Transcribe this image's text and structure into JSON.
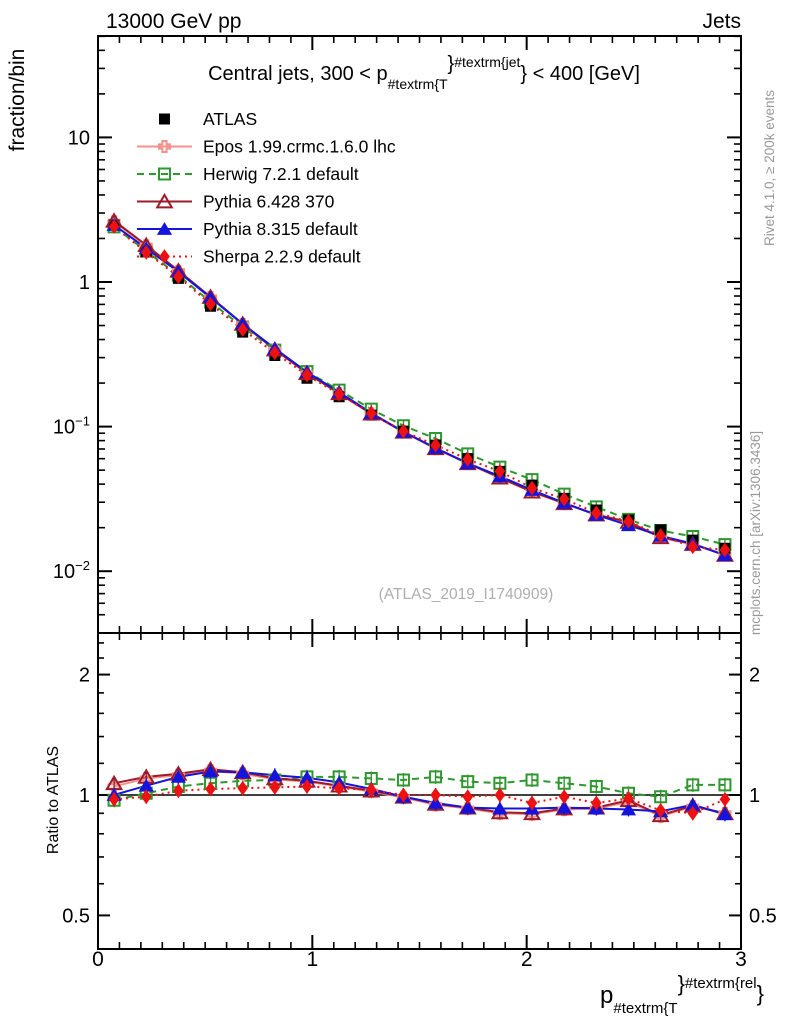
{
  "header": {
    "left": "13000 GeV pp",
    "right": "Jets"
  },
  "side_notes": {
    "rivet": "Rivet 4.1.0, ≥ 200k events",
    "mcplots": "mcplots.cern.ch [arXiv:1306.3436]"
  },
  "watermark": "(ATLAS_2019_I1740909)",
  "chart_data": {
    "type": "line",
    "title": {
      "plain": "Central jets, 300 < p_{#textrm{T}}^{#textrm{jet}} < 400 [GeV]",
      "parts": [
        {
          "t": "Central jets, 300 < p",
          "off": 0,
          "size": 20
        },
        {
          "t": "#textrm{T",
          "off": 9,
          "size": 14
        },
        {
          "t": "}",
          "off": -10,
          "size": 20
        },
        {
          "t": "#textrm{jet",
          "off": -13,
          "size": 14
        },
        {
          "t": "} < 400 [GeV]",
          "off": 0,
          "size": 20
        }
      ]
    },
    "ylabel": "fraction/bin",
    "ratio_ylabel": "Ratio to ATLAS",
    "xlabel": {
      "plain": "p_{#textrm{T}}^{#textrm{rel}}",
      "parts": [
        {
          "t": "p",
          "off": 0,
          "size": 24
        },
        {
          "t": "#textrm{T",
          "off": 10,
          "size": 15
        },
        {
          "t": "}",
          "off": -12,
          "size": 22
        },
        {
          "t": "#textrm{rel",
          "off": -15,
          "size": 15
        },
        {
          "t": "}",
          "off": -2,
          "size": 22
        }
      ]
    },
    "x_range": [
      0,
      3
    ],
    "x_major_ticks": [
      0,
      1,
      2,
      3
    ],
    "x_tick_labels": [
      "0",
      "1",
      "2",
      "3"
    ],
    "x_minor_step": 0.1,
    "main_axis": {
      "scale": "log",
      "range": [
        0.00374,
        50.2
      ],
      "major_ticks": [
        {
          "v": 10,
          "t": "10"
        },
        {
          "v": 1,
          "t": "1"
        },
        {
          "v": 0.1,
          "t": "10",
          "e": "−1"
        },
        {
          "v": 0.01,
          "t": "10",
          "e": "−2"
        }
      ],
      "minor_ticks": [
        0.005,
        0.006,
        0.007,
        0.008,
        0.009,
        0.02,
        0.03,
        0.04,
        0.05,
        0.06,
        0.07,
        0.08,
        0.09,
        0.2,
        0.3,
        0.4,
        0.5,
        0.6,
        0.7,
        0.8,
        0.9,
        2,
        3,
        4,
        5,
        6,
        7,
        8,
        9,
        20,
        30,
        40,
        50
      ]
    },
    "ratio_axis": {
      "scale": "log",
      "range": [
        0.412,
        2.54
      ],
      "baseline": 1,
      "major_ticks": [
        {
          "v": 2,
          "t": "2"
        },
        {
          "v": 1,
          "t": "1"
        },
        {
          "v": 0.5,
          "t": "0.5"
        }
      ],
      "minor_ticks": [
        0.6,
        0.7,
        0.8,
        0.9,
        1.2,
        1.4,
        1.6,
        1.8,
        2.2,
        2.4
      ]
    },
    "bin_centers": [
      0.075,
      0.225,
      0.375,
      0.525,
      0.675,
      0.825,
      0.975,
      1.125,
      1.275,
      1.425,
      1.575,
      1.725,
      1.875,
      2.025,
      2.175,
      2.325,
      2.475,
      2.625,
      2.775,
      2.925
    ],
    "series": [
      {
        "key": "atlas",
        "name": "ATLAS",
        "color": "#000000",
        "marker": "filled-square",
        "line": "none",
        "role": "data",
        "values": [
          2.48,
          1.62,
          1.06,
          0.68,
          0.45,
          0.31,
          0.216,
          0.161,
          0.12,
          0.093,
          0.0745,
          0.06,
          0.049,
          0.0394,
          0.0319,
          0.0265,
          0.0226,
          0.0193,
          0.0164,
          0.0144
        ]
      },
      {
        "key": "epos",
        "name": "Epos 1.99.crmc.1.6.0 lhc",
        "color": "#f4918b",
        "marker": "open-cross",
        "line": "solid",
        "ratio_to_data": [
          1.05,
          1.1,
          1.12,
          1.15,
          1.13,
          1.095,
          1.08,
          1.05,
          1.02,
          0.985,
          0.945,
          0.925,
          0.9,
          0.895,
          0.92,
          0.925,
          0.96,
          0.885,
          0.935,
          0.9
        ]
      },
      {
        "key": "herwig",
        "name": "Herwig 7.2.1 default",
        "color": "#2f972f",
        "marker": "open-square",
        "line": "dashed",
        "ratio_to_data": [
          0.97,
          1.01,
          1.05,
          1.07,
          1.085,
          1.09,
          1.11,
          1.11,
          1.1,
          1.09,
          1.11,
          1.08,
          1.07,
          1.09,
          1.07,
          1.05,
          1.01,
          0.99,
          1.06,
          1.06
        ]
      },
      {
        "key": "pythia6",
        "name": "Pythia 6.428 370",
        "color": "#9c1b2a",
        "marker": "open-triangle",
        "line": "solid",
        "ratio_to_data": [
          1.07,
          1.11,
          1.13,
          1.16,
          1.14,
          1.1,
          1.085,
          1.055,
          1.025,
          0.99,
          0.95,
          0.93,
          0.905,
          0.9,
          0.925,
          0.93,
          0.97,
          0.89,
          0.94,
          0.9
        ]
      },
      {
        "key": "pythia8",
        "name": "Pythia 8.315 default",
        "color": "#1414dc",
        "marker": "filled-triangle",
        "line": "solid",
        "ratio_to_data": [
          1.0,
          1.055,
          1.11,
          1.145,
          1.14,
          1.12,
          1.105,
          1.075,
          1.035,
          0.99,
          0.955,
          0.93,
          0.925,
          0.925,
          0.93,
          0.925,
          0.92,
          0.91,
          0.945,
          0.895
        ]
      },
      {
        "key": "sherpa",
        "name": "Sherpa 2.2.9 default",
        "color": "#ee1111",
        "marker": "filled-diamond",
        "line": "dotted",
        "ratio_to_data": [
          0.975,
          0.99,
          1.025,
          1.035,
          1.04,
          1.045,
          1.05,
          1.04,
          1.03,
          1.0,
          1.0,
          0.99,
          1.0,
          0.955,
          0.99,
          0.955,
          0.98,
          0.915,
          0.9,
          0.975
        ]
      }
    ],
    "legend_position": "top-left-inside",
    "grid": false
  }
}
